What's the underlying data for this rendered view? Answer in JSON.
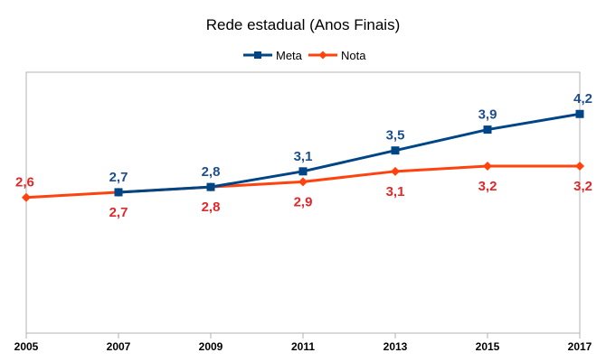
{
  "chart_data": {
    "type": "line",
    "title": "Rede estadual (Anos Finais)",
    "categories": [
      "2005",
      "2007",
      "2009",
      "2011",
      "2013",
      "2015",
      "2017"
    ],
    "ylim": [
      0,
      5
    ],
    "grid": false,
    "legend_position": "top-center",
    "series": [
      {
        "name": "Meta",
        "color": "#004586",
        "label_color": "#1f4e8c",
        "marker": "square",
        "values": [
          null,
          2.7,
          2.8,
          3.1,
          3.5,
          3.9,
          4.2
        ],
        "labels": [
          "",
          "2,7",
          "2,8",
          "3,1",
          "3,5",
          "3,9",
          "4,2"
        ]
      },
      {
        "name": "Nota",
        "color": "#ff420e",
        "label_color": "#e0282a",
        "marker": "diamond",
        "values": [
          2.6,
          2.7,
          2.8,
          2.9,
          3.1,
          3.2,
          3.2
        ],
        "labels": [
          "2,6",
          "2,7",
          "2,8",
          "2,9",
          "3,1",
          "3,2",
          "3,2"
        ]
      }
    ]
  }
}
